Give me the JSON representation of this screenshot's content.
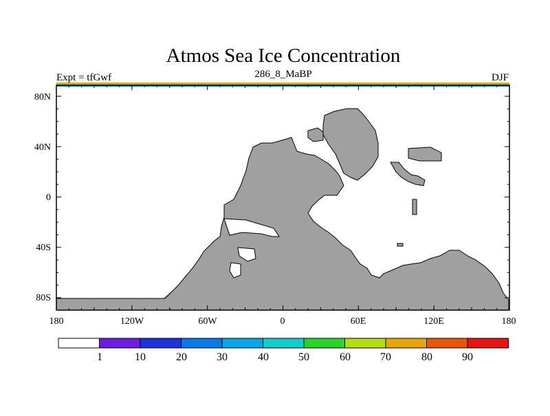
{
  "title": "Atmos Sea Ice Concentration",
  "subtitle_left": "Expt = tfGwf",
  "subtitle_center": "286_8_MaBP",
  "subtitle_right": "DJF",
  "y_ticks": [
    "80N",
    "40N",
    "0",
    "40S",
    "80S"
  ],
  "x_ticks": [
    "180",
    "120W",
    "60W",
    "0",
    "60E",
    "120E",
    "180"
  ],
  "colorbar": {
    "labels": [
      "1",
      "10",
      "20",
      "30",
      "40",
      "50",
      "60",
      "70",
      "80",
      "90"
    ],
    "colors": [
      "#ffffff",
      "#6a1fe0",
      "#1f32dc",
      "#0a78e6",
      "#0aa6e6",
      "#12cdc8",
      "#2cd22c",
      "#b4de12",
      "#e6a60a",
      "#e6560a",
      "#e61414"
    ]
  },
  "land_color": "#a0a0a0"
}
